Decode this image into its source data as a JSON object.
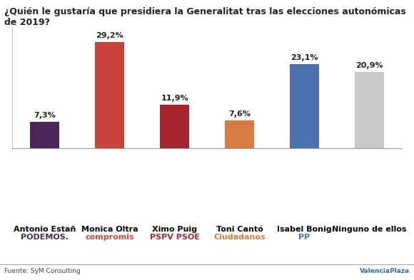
{
  "chart_data": {
    "type": "bar",
    "title": "¿Quién le gustaría que presidiera la Generalitat tras las elecciones autonómicas de 2019?",
    "categories": [
      "Antonio Estañ",
      "Monica Oltra",
      "Ximo Puig",
      "Toni Cantó",
      "Isabel Bonig",
      "Ninguno de ellos"
    ],
    "values": [
      7.3,
      29.2,
      11.9,
      7.6,
      23.1,
      20.9
    ],
    "value_labels": [
      "7,3%",
      "29,2%",
      "11,9%",
      "7,6%",
      "23,1%",
      "20,9%"
    ],
    "colors": [
      "#4a2556",
      "#c8423a",
      "#a8242e",
      "#d97a3f",
      "#4a70b0",
      "#c9c9c9"
    ],
    "data_labels": true,
    "tick_labels": "x",
    "ylim": [
      0,
      33
    ],
    "yticks": [],
    "parties": [
      "PODEMOS.",
      "compromis",
      "PSPV PSOE",
      "Ciudadanos",
      "PP",
      null
    ],
    "source": "Fuente: SyM Consulting",
    "credit": "ValenciaPlaza"
  }
}
